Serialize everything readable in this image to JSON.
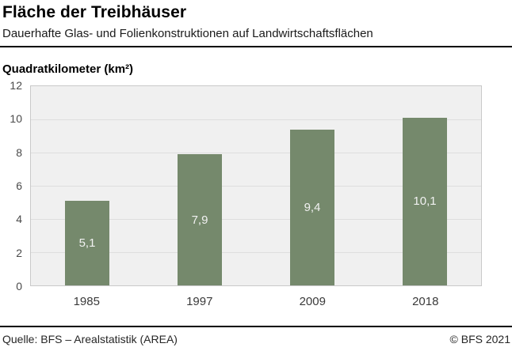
{
  "header": {
    "title": "Fläche der Treibhäuser",
    "subtitle": "Dauerhafte Glas- und Folienkonstruktionen auf Landwirtschaftsflächen"
  },
  "chart_data": {
    "type": "bar",
    "title": "Fläche der Treibhäuser",
    "subtitle": "Dauerhafte Glas- und Folienkonstruktionen auf Landwirtschaftsflächen",
    "ylabel": "Quadratkilometer (km²)",
    "xlabel": "",
    "categories": [
      "1985",
      "1997",
      "2009",
      "2018"
    ],
    "values": [
      5.1,
      7.9,
      9.4,
      10.1
    ],
    "value_labels": [
      "5,1",
      "7,9",
      "9,4",
      "10,1"
    ],
    "ylim": [
      0,
      12
    ],
    "yticks": [
      0,
      2,
      4,
      6,
      8,
      10,
      12
    ],
    "grid": "horizontal",
    "legend": "none",
    "bar_color": "#75896c",
    "plot_bg": "#f0f0f0",
    "value_label_color": "#f1f1f1"
  },
  "footer": {
    "source": "Quelle: BFS – Arealstatistik (AREA)",
    "copyright": "© BFS 2021"
  }
}
